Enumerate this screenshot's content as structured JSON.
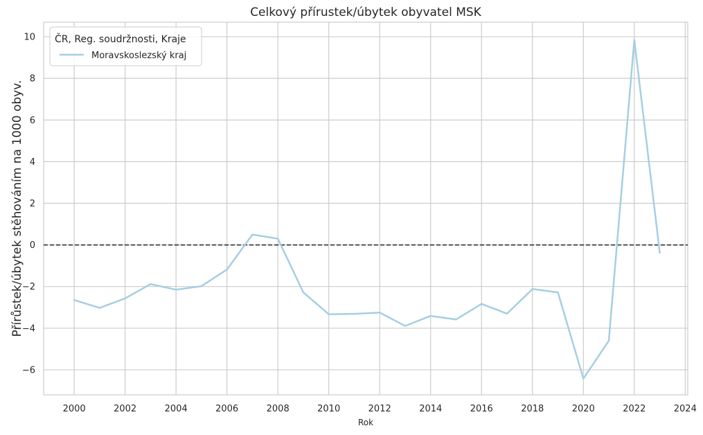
{
  "chart_data": {
    "type": "line",
    "title": "Celkový přírustek/úbytek obyvatel MSK",
    "xlabel": "Rok",
    "ylabel": "Přírůstek/úbytek stěhováním na 1000 obyv.",
    "xlim": [
      1998.8,
      2024.1
    ],
    "ylim": [
      -7.2,
      10.7
    ],
    "x_ticks": [
      2000,
      2002,
      2004,
      2006,
      2008,
      2010,
      2012,
      2014,
      2016,
      2018,
      2020,
      2022,
      2024
    ],
    "x_tick_labels": [
      "2000",
      "2002",
      "2004",
      "2006",
      "2008",
      "2010",
      "2012",
      "2014",
      "2016",
      "2018",
      "2020",
      "2022",
      "2024"
    ],
    "y_ticks": [
      -6,
      -4,
      -2,
      0,
      2,
      4,
      6,
      8,
      10
    ],
    "y_tick_labels": [
      "−6",
      "−4",
      "−2",
      "0",
      "2",
      "4",
      "6",
      "8",
      "10"
    ],
    "grid": true,
    "reference_line": {
      "y": 0,
      "style": "dashed",
      "color": "#222222"
    },
    "legend": {
      "title": "ČR, Reg. soudržnosti, Kraje",
      "placement": "top-left"
    },
    "series": [
      {
        "name": "Moravskoslezský kraj",
        "color": "#a6cee3",
        "x": [
          2000,
          2001,
          2002,
          2003,
          2004,
          2005,
          2006,
          2007,
          2008,
          2009,
          2010,
          2011,
          2012,
          2013,
          2014,
          2015,
          2016,
          2017,
          2018,
          2019,
          2020,
          2021,
          2022,
          2023
        ],
        "values": [
          -2.65,
          -3.02,
          -2.57,
          -1.88,
          -2.15,
          -1.98,
          -1.18,
          0.5,
          0.3,
          -2.28,
          -3.33,
          -3.31,
          -3.25,
          -3.89,
          -3.41,
          -3.58,
          -2.83,
          -3.3,
          -2.12,
          -2.28,
          -6.42,
          -4.6,
          9.85,
          -0.38
        ]
      }
    ]
  }
}
